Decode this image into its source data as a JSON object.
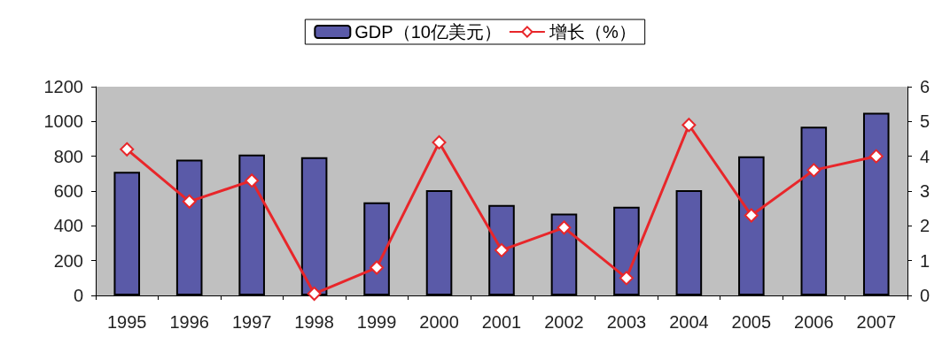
{
  "chart_data": {
    "type": "bar",
    "categories": [
      "1995",
      "1996",
      "1997",
      "1998",
      "1999",
      "2000",
      "2001",
      "2002",
      "2003",
      "2004",
      "2005",
      "2006",
      "2007"
    ],
    "series": [
      {
        "name": "GDP（10亿美元）",
        "color": "#5a5aa8",
        "values": [
          710,
          780,
          810,
          795,
          535,
          605,
          520,
          470,
          510,
          605,
          800,
          970,
          1050
        ]
      },
      {
        "name": "增长（%）",
        "type": "line",
        "axis": "y2",
        "color": "#e8262a",
        "marker": "diamond",
        "values": [
          4.2,
          2.7,
          3.3,
          0.05,
          0.8,
          4.4,
          1.3,
          1.95,
          0.5,
          4.9,
          2.3,
          3.6,
          4.0
        ]
      }
    ],
    "ylim": [
      0,
      1200
    ],
    "yticks": [
      0,
      200,
      400,
      600,
      800,
      1000,
      1200
    ],
    "y2lim": [
      0,
      6
    ],
    "y2ticks": [
      0,
      1,
      2,
      3,
      4,
      5,
      6
    ],
    "grid": false,
    "legend": "top"
  }
}
